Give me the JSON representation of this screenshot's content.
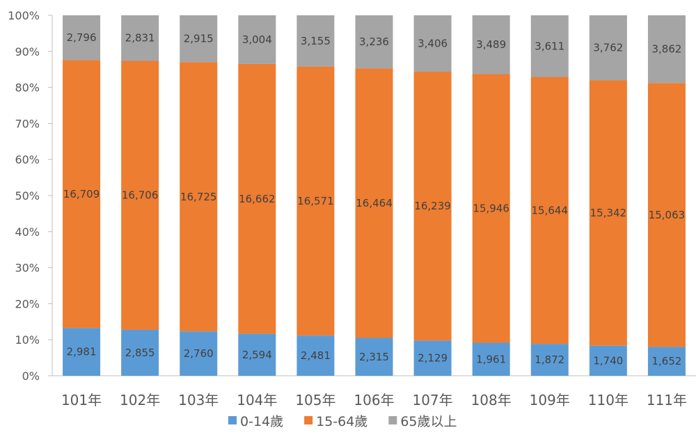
{
  "chart_data": {
    "type": "bar",
    "stacked": "percent",
    "categories": [
      "101年",
      "102年",
      "103年",
      "104年",
      "105年",
      "106年",
      "107年",
      "108年",
      "109年",
      "110年",
      "111年"
    ],
    "series": [
      {
        "name": "0-14歲",
        "color": "#5B9BD5",
        "values": [
          2981,
          2855,
          2760,
          2594,
          2481,
          2315,
          2129,
          1961,
          1872,
          1740,
          1652
        ],
        "labels": [
          "2,981",
          "2,855",
          "2,760",
          "2,594",
          "2,481",
          "2,315",
          "2,129",
          "1,961",
          "1,872",
          "1,740",
          "1,652"
        ]
      },
      {
        "name": "15-64歲",
        "color": "#ED7D31",
        "values": [
          16709,
          16706,
          16725,
          16662,
          16571,
          16464,
          16239,
          15946,
          15644,
          15342,
          15063
        ],
        "labels": [
          "16,709",
          "16,706",
          "16,725",
          "16,662",
          "16,571",
          "16,464",
          "16,239",
          "15,946",
          "15,644",
          "15,342",
          "15,063"
        ]
      },
      {
        "name": "65歲以上",
        "color": "#A5A5A5",
        "values": [
          2796,
          2831,
          2915,
          3004,
          3155,
          3236,
          3406,
          3489,
          3611,
          3762,
          3862
        ],
        "labels": [
          "2,796",
          "2,831",
          "2,915",
          "3,004",
          "3,155",
          "3,236",
          "3,406",
          "3,489",
          "3,611",
          "3,762",
          "3,862"
        ]
      }
    ],
    "y_ticks": [
      "0%",
      "10%",
      "20%",
      "30%",
      "40%",
      "50%",
      "60%",
      "70%",
      "80%",
      "90%",
      "100%"
    ],
    "ylim": [
      0,
      100
    ],
    "grid": false,
    "legend_position": "bottom"
  }
}
